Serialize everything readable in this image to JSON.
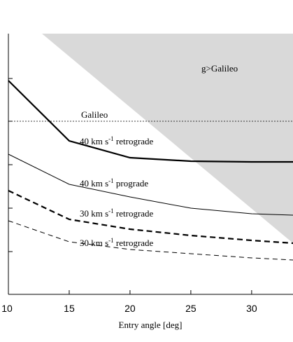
{
  "chart_data": {
    "type": "line",
    "title": "",
    "xlabel": "Entry angle [deg]",
    "ylabel": "",
    "xlim": [
      10,
      33.4
    ],
    "x_ticks": [
      10,
      15,
      20,
      25,
      30
    ],
    "x_tick_labels": [
      "10",
      "15",
      "20",
      "25",
      "30"
    ],
    "y_ticks_count": 6,
    "grid": false,
    "legend": "none",
    "region": {
      "label": "g>Galileo",
      "color": "#d9d9d9"
    },
    "reference_line": {
      "label": "Galileo",
      "style": "dotted"
    },
    "series": [
      {
        "label_main": "40 km s",
        "label_sup": "-1",
        "label_tail": " retrograde",
        "style": "thick-solid",
        "x": [
          10,
          15,
          20,
          25,
          30,
          33.4
        ],
        "y": [
          305,
          219,
          195,
          190,
          189,
          189
        ]
      },
      {
        "label_main": "40 km s",
        "label_sup": "-1",
        "label_tail": " prograde",
        "style": "thin-solid",
        "x": [
          10,
          15,
          20,
          25,
          30,
          33.4
        ],
        "y": [
          200,
          157,
          139,
          123,
          115,
          113
        ]
      },
      {
        "label_main": "30 km s",
        "label_sup": "-1",
        "label_tail": " retrograde",
        "style": "thick-dashed",
        "x": [
          10,
          15,
          20,
          25,
          30,
          33.4
        ],
        "y": [
          148,
          107,
          93,
          84,
          77,
          73
        ]
      },
      {
        "label_main": "30 km s",
        "label_sup": "-1",
        "label_tail": " retrograde",
        "style": "thin-dashed",
        "x": [
          10,
          15,
          20,
          25,
          30,
          33.4
        ],
        "y": [
          105,
          75,
          64,
          58,
          52,
          49
        ]
      }
    ]
  }
}
